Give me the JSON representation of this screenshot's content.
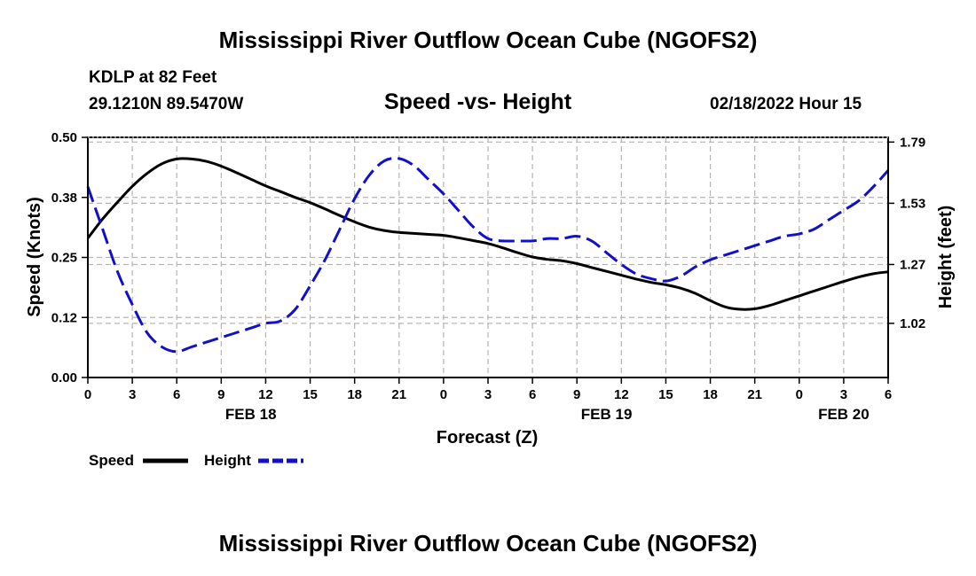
{
  "page": {
    "title_top": "Mississippi River Outflow Ocean Cube (NGOFS2)",
    "title_bottom": "Mississippi River Outflow Ocean Cube (NGOFS2)",
    "station_name": "KDLP at 82 Feet",
    "station_coords": "29.1210N  89.5470W",
    "chart_subtitle": "Speed -vs- Height",
    "timestamp": "02/18/2022 Hour 15"
  },
  "colors": {
    "speed": "#000000",
    "height": "#1010cc",
    "grid": "#b4b4b4"
  },
  "chart_data": {
    "type": "line",
    "title": "Speed -vs- Height",
    "xlabel": "Forecast (Z)",
    "ylabel": "Speed (Knots)",
    "y2label": "Height (feet)",
    "x_hours": [
      0,
      54
    ],
    "x_tick_labels": [
      "0",
      "3",
      "6",
      "9",
      "12",
      "15",
      "18",
      "21",
      "0",
      "3",
      "6",
      "9",
      "12",
      "15",
      "18",
      "21",
      "0",
      "3",
      "6"
    ],
    "date_labels": [
      {
        "label": "FEB 18",
        "hour": 11
      },
      {
        "label": "FEB 19",
        "hour": 35
      },
      {
        "label": "FEB 20",
        "hour": 51
      }
    ],
    "ylim": [
      0,
      0.5
    ],
    "y_ticks": [
      {
        "value": 0.0,
        "label": "0.00"
      },
      {
        "value": 0.125,
        "label": "0.12"
      },
      {
        "value": 0.25,
        "label": "0.25"
      },
      {
        "value": 0.375,
        "label": "0.38"
      },
      {
        "value": 0.5,
        "label": "0.50"
      }
    ],
    "y2lim": [
      0.79,
      1.81
    ],
    "y2_ticks": [
      {
        "value": 1.02,
        "label": "1.02"
      },
      {
        "value": 1.27,
        "label": "1.27"
      },
      {
        "value": 1.53,
        "label": "1.53"
      },
      {
        "value": 1.79,
        "label": "1.79"
      }
    ],
    "grid": true,
    "legend_position": "bottom-left",
    "series": [
      {
        "name": "Speed",
        "axis": "left",
        "style": "solid",
        "x": [
          0,
          1,
          2,
          3,
          4,
          5,
          6,
          7,
          8,
          9,
          10,
          11,
          12,
          13,
          14,
          15,
          16,
          17,
          18,
          19,
          20,
          21,
          22,
          23,
          24,
          25,
          26,
          27,
          28,
          29,
          30,
          31,
          32,
          33,
          34,
          35,
          36,
          37,
          38,
          39,
          40,
          41,
          42,
          43,
          44,
          45,
          46,
          47,
          48,
          49,
          50,
          51,
          52,
          53,
          54
        ],
        "values": [
          0.29,
          0.33,
          0.365,
          0.398,
          0.425,
          0.445,
          0.455,
          0.455,
          0.45,
          0.44,
          0.427,
          0.413,
          0.399,
          0.387,
          0.375,
          0.364,
          0.351,
          0.337,
          0.324,
          0.313,
          0.306,
          0.302,
          0.3,
          0.298,
          0.296,
          0.291,
          0.285,
          0.279,
          0.27,
          0.26,
          0.251,
          0.246,
          0.243,
          0.237,
          0.229,
          0.221,
          0.213,
          0.205,
          0.198,
          0.193,
          0.186,
          0.175,
          0.16,
          0.147,
          0.142,
          0.143,
          0.15,
          0.16,
          0.17,
          0.18,
          0.19,
          0.2,
          0.209,
          0.216,
          0.22
        ]
      },
      {
        "name": "Height",
        "axis": "right",
        "style": "dashed",
        "x": [
          0,
          1,
          2,
          3,
          4,
          5,
          6,
          7,
          8,
          9,
          10,
          11,
          12,
          13,
          14,
          15,
          16,
          17,
          18,
          19,
          20,
          21,
          22,
          23,
          24,
          25,
          26,
          27,
          28,
          29,
          30,
          31,
          32,
          33,
          34,
          35,
          36,
          37,
          38,
          39,
          40,
          41,
          42,
          43,
          44,
          45,
          46,
          47,
          48,
          49,
          50,
          51,
          52,
          53,
          54
        ],
        "values": [
          1.6,
          1.42,
          1.24,
          1.1,
          0.98,
          0.92,
          0.9,
          0.92,
          0.94,
          0.96,
          0.98,
          1.0,
          1.02,
          1.03,
          1.08,
          1.18,
          1.29,
          1.42,
          1.55,
          1.65,
          1.71,
          1.72,
          1.69,
          1.63,
          1.57,
          1.5,
          1.43,
          1.38,
          1.37,
          1.37,
          1.37,
          1.38,
          1.38,
          1.39,
          1.37,
          1.32,
          1.27,
          1.23,
          1.21,
          1.2,
          1.22,
          1.26,
          1.29,
          1.31,
          1.33,
          1.35,
          1.37,
          1.39,
          1.4,
          1.42,
          1.46,
          1.5,
          1.54,
          1.6,
          1.67
        ]
      }
    ]
  }
}
